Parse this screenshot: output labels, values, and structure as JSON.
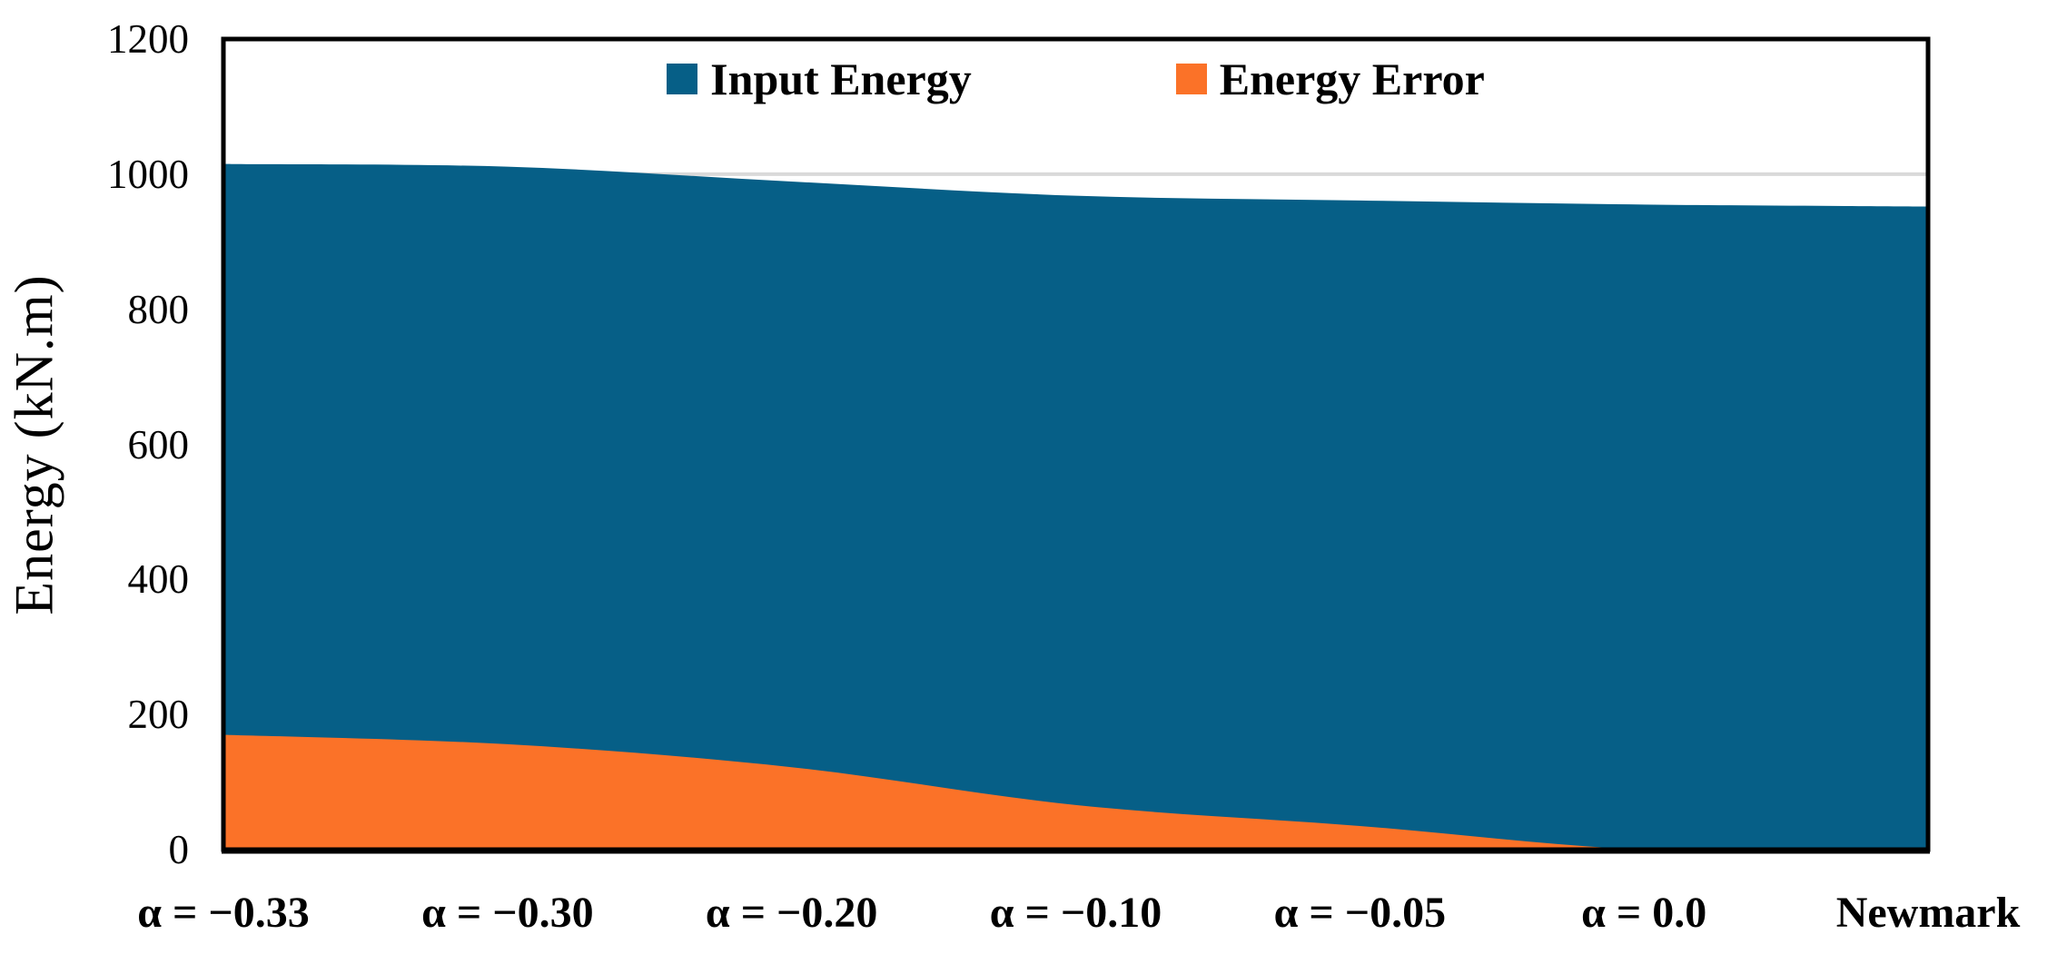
{
  "chart_data": {
    "type": "area",
    "title": "",
    "ylabel": "Energy (kN.m)",
    "xlabel": "",
    "categories": [
      "α = −0.33",
      "α = −0.30",
      "α = −0.20",
      "α = −0.10",
      "α = −0.05",
      "α = 0.0",
      "Newmark"
    ],
    "series": [
      {
        "name": "Input Energy",
        "color": "#065f87",
        "values": [
          1015,
          1011,
          989,
          968,
          961,
          955,
          952
        ]
      },
      {
        "name": "Energy Error",
        "color": "#fb7228",
        "values": [
          170,
          156,
          122,
          66,
          35,
          0,
          0
        ]
      }
    ],
    "ylim": [
      0,
      1200
    ],
    "yticks": [
      0,
      200,
      400,
      600,
      800,
      1000,
      1200
    ],
    "grid": true,
    "gridline_color": "#d9d9d9",
    "axis_color": "#000000",
    "background_color": "#ffffff",
    "legend_position": "top-center",
    "smoothed": true,
    "category_axis_mode": "on-tick-marks"
  }
}
